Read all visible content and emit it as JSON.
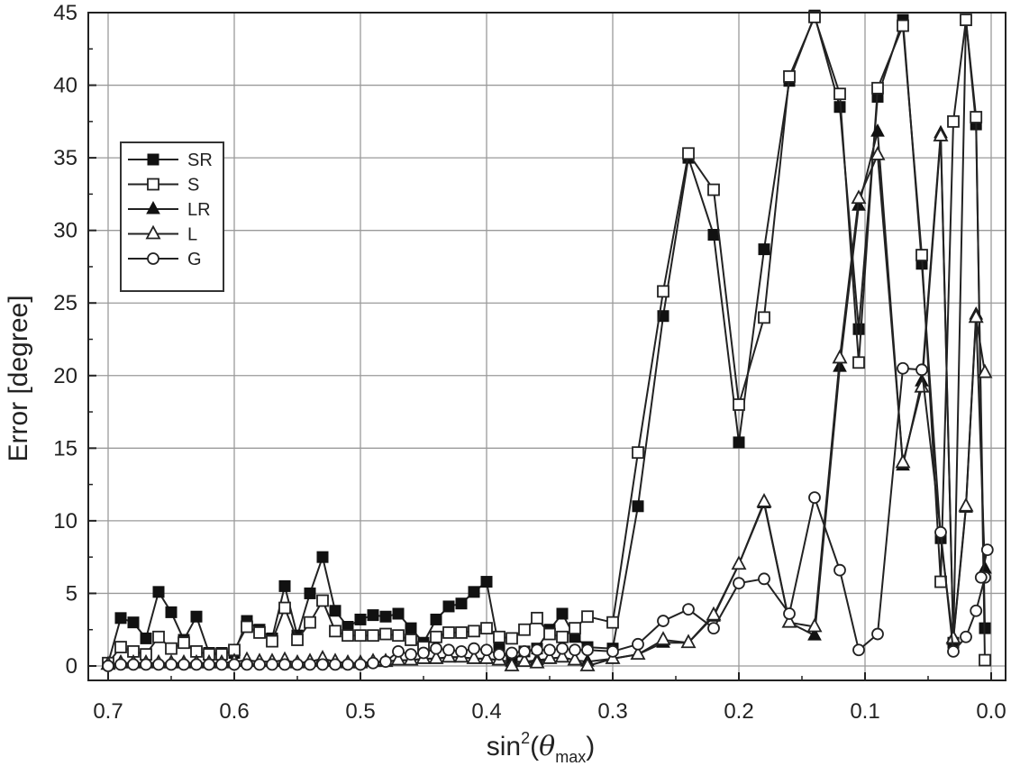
{
  "chart_data": {
    "type": "line",
    "title": "",
    "xlabel": "sin",
    "xlabel_sup": "2",
    "xlabel_theta": "θ",
    "xlabel_sub": "max",
    "ylabel": "Error [degree]",
    "xlim": [
      0.7,
      0.0
    ],
    "ylim": [
      0,
      45
    ],
    "x_reversed": true,
    "grid": true,
    "legend_position": "upper-left",
    "xticks": [
      "0.7",
      "0.6",
      "0.5",
      "0.4",
      "0.3",
      "0.2",
      "0.1",
      "0.0"
    ],
    "yticks": [
      "0",
      "5",
      "10",
      "15",
      "20",
      "25",
      "30",
      "35",
      "40",
      "45"
    ],
    "x": [
      0.7,
      0.69,
      0.68,
      0.67,
      0.66,
      0.65,
      0.64,
      0.63,
      0.62,
      0.61,
      0.6,
      0.59,
      0.58,
      0.57,
      0.56,
      0.55,
      0.54,
      0.53,
      0.52,
      0.51,
      0.5,
      0.49,
      0.48,
      0.47,
      0.46,
      0.45,
      0.44,
      0.43,
      0.42,
      0.41,
      0.4,
      0.39,
      0.38,
      0.37,
      0.36,
      0.35,
      0.34,
      0.33,
      0.32,
      0.3,
      0.28,
      0.26,
      0.24,
      0.22,
      0.2,
      0.18,
      0.16,
      0.14,
      0.12,
      0.105,
      0.09,
      0.07,
      0.055,
      0.04,
      0.03,
      0.02,
      0.012,
      0.005
    ],
    "series": [
      {
        "name": "SR",
        "marker": "square-filled",
        "values": [
          0.2,
          3.3,
          3.0,
          1.9,
          5.1,
          3.7,
          1.8,
          3.4,
          0.9,
          0.9,
          0.9,
          3.1,
          2.5,
          1.9,
          5.5,
          2.1,
          5.0,
          7.5,
          3.8,
          2.7,
          3.2,
          3.5,
          3.4,
          3.6,
          2.6,
          1.6,
          3.2,
          4.1,
          4.3,
          5.1,
          5.8,
          1.2,
          0.3,
          1.0,
          1.2,
          2.5,
          3.6,
          2.0,
          1.3,
          1.2,
          11.0,
          24.1,
          35.0,
          29.7,
          15.4,
          28.7,
          40.3,
          44.8,
          38.5,
          23.2,
          39.2,
          44.5,
          27.7,
          8.8,
          1.6,
          44.5,
          37.3,
          2.6
        ]
      },
      {
        "name": "S",
        "marker": "square-open",
        "values": [
          0.2,
          1.3,
          1.0,
          0.8,
          2.0,
          1.2,
          1.6,
          1.0,
          0.8,
          0.8,
          1.1,
          2.7,
          2.3,
          1.7,
          4.0,
          1.8,
          3.0,
          4.5,
          2.4,
          2.1,
          2.1,
          2.1,
          2.2,
          2.1,
          1.8,
          1.3,
          2.0,
          2.3,
          2.3,
          2.4,
          2.6,
          2.0,
          1.9,
          2.5,
          3.3,
          2.2,
          2.0,
          2.6,
          3.4,
          3.0,
          14.7,
          25.8,
          35.3,
          32.8,
          18.0,
          24.0,
          40.6,
          44.7,
          39.4,
          20.9,
          39.8,
          44.1,
          28.3,
          5.8,
          37.5,
          44.5,
          37.8,
          0.4
        ]
      },
      {
        "name": "LR",
        "marker": "triangle-filled",
        "values": [
          0.1,
          0.2,
          0.2,
          0.2,
          0.2,
          0.2,
          0.2,
          0.2,
          0.2,
          0.2,
          0.3,
          0.4,
          0.3,
          0.3,
          0.4,
          0.2,
          0.3,
          0.5,
          0.3,
          0.2,
          0.2,
          0.3,
          0.3,
          0.4,
          0.4,
          0.5,
          0.5,
          0.6,
          0.6,
          0.5,
          0.5,
          0.4,
          0.3,
          0.3,
          0.4,
          0.5,
          0.6,
          0.4,
          0.3,
          0.5,
          0.8,
          1.6,
          1.6,
          3.4,
          7.0,
          11.2,
          3.0,
          2.1,
          20.6,
          31.7,
          36.8,
          13.8,
          19.6,
          36.7,
          1.8,
          10.9,
          24.2,
          6.7
        ]
      },
      {
        "name": "L",
        "marker": "triangle-open",
        "values": [
          0.1,
          0.2,
          0.2,
          0.2,
          0.2,
          0.2,
          0.2,
          0.2,
          0.2,
          0.2,
          0.3,
          0.4,
          0.3,
          0.3,
          0.4,
          0.2,
          0.3,
          0.5,
          0.3,
          0.2,
          0.2,
          0.3,
          0.3,
          0.4,
          0.4,
          0.5,
          0.5,
          0.6,
          0.6,
          0.5,
          0.5,
          0.4,
          0.0,
          0.3,
          0.2,
          0.5,
          0.6,
          0.4,
          0.0,
          0.5,
          0.8,
          1.8,
          1.6,
          3.5,
          7.0,
          11.3,
          3.0,
          2.7,
          21.2,
          32.2,
          35.2,
          14.0,
          19.2,
          36.5,
          1.9,
          11.0,
          24.0,
          20.2
        ]
      },
      {
        "name": "G",
        "marker": "circle-open",
        "values": [
          0.0,
          0.1,
          0.1,
          0.1,
          0.1,
          0.1,
          0.1,
          0.1,
          0.1,
          0.1,
          0.1,
          0.1,
          0.1,
          0.1,
          0.1,
          0.1,
          0.1,
          0.1,
          0.1,
          0.1,
          0.1,
          0.2,
          0.3,
          1.0,
          0.8,
          0.9,
          1.2,
          1.1,
          1.0,
          1.2,
          1.1,
          0.8,
          0.9,
          1.0,
          1.1,
          1.1,
          1.2,
          1.1,
          1.1,
          1.0,
          1.5,
          3.1,
          3.9,
          2.6,
          5.7,
          6.0,
          3.6,
          11.6,
          6.6,
          1.1,
          2.2,
          20.5,
          20.4,
          9.2,
          1.0,
          2.0,
          3.8,
          6.1
        ]
      }
    ],
    "g_tail": {
      "x": [
        0.008,
        0.003
      ],
      "values": [
        6.1,
        8.0
      ]
    }
  }
}
